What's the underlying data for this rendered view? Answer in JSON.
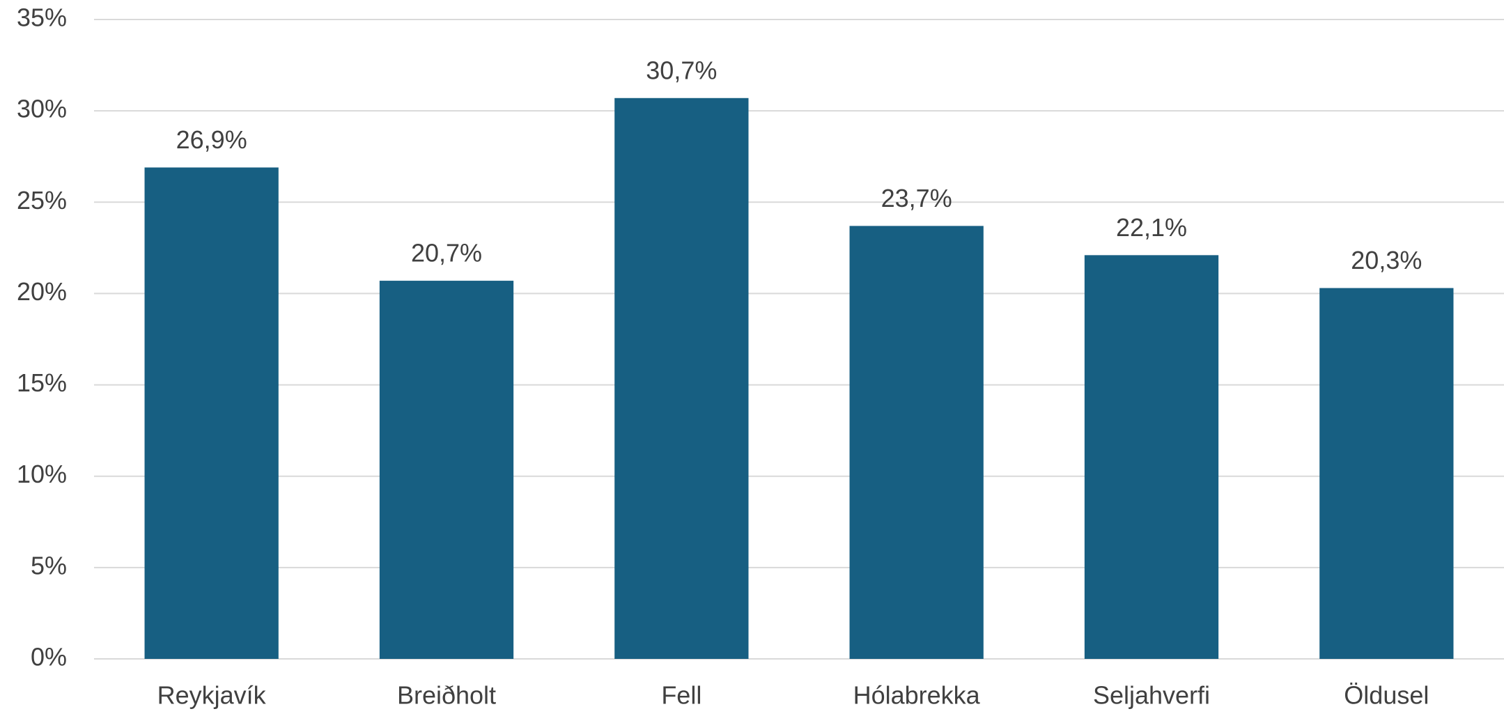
{
  "chart_data": {
    "type": "bar",
    "categories": [
      "Reykjavík",
      "Breiðholt",
      "Fell",
      "Hólabrekka",
      "Seljahverfi",
      "Öldusel"
    ],
    "values": [
      26.9,
      20.7,
      30.7,
      23.7,
      22.1,
      20.3
    ],
    "value_labels": [
      "26,9%",
      "20,7%",
      "30,7%",
      "23,7%",
      "22,1%",
      "20,3%"
    ],
    "color": "#175f82",
    "ylim": [
      0,
      35
    ],
    "yticks": [
      {
        "value": 0,
        "label": "0%"
      },
      {
        "value": 5,
        "label": "5%"
      },
      {
        "value": 10,
        "label": "10%"
      },
      {
        "value": 15,
        "label": "15%"
      },
      {
        "value": 20,
        "label": "20%"
      },
      {
        "value": 25,
        "label": "25%"
      },
      {
        "value": 30,
        "label": "30%"
      },
      {
        "value": 35,
        "label": "35%"
      }
    ],
    "grid": true
  }
}
